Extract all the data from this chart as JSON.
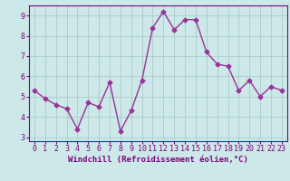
{
  "x": [
    0,
    1,
    2,
    3,
    4,
    5,
    6,
    7,
    8,
    9,
    10,
    11,
    12,
    13,
    14,
    15,
    16,
    17,
    18,
    19,
    20,
    21,
    22,
    23
  ],
  "y": [
    5.3,
    4.9,
    4.6,
    4.4,
    3.4,
    4.7,
    4.5,
    5.7,
    3.3,
    4.3,
    5.8,
    8.4,
    9.2,
    8.3,
    8.8,
    8.8,
    7.2,
    6.6,
    6.5,
    5.3,
    5.8,
    5.0,
    5.5,
    5.3
  ],
  "line_color": "#993399",
  "marker": "D",
  "markersize": 2.5,
  "linewidth": 1.0,
  "xlabel": "Windchill (Refroidissement éolien,°C)",
  "xlim": [
    -0.5,
    23.5
  ],
  "ylim": [
    2.8,
    9.5
  ],
  "yticks": [
    3,
    4,
    5,
    6,
    7,
    8,
    9
  ],
  "xticks": [
    0,
    1,
    2,
    3,
    4,
    5,
    6,
    7,
    8,
    9,
    10,
    11,
    12,
    13,
    14,
    15,
    16,
    17,
    18,
    19,
    20,
    21,
    22,
    23
  ],
  "bg_color": "#cce8e8",
  "grid_color": "#aacccc",
  "axis_bg": "#cce8e8",
  "spine_color": "#800080",
  "tick_color": "#800080",
  "xlabel_color": "#800080",
  "xlabel_fontsize": 6.5,
  "tick_fontsize": 6.0,
  "title": ""
}
